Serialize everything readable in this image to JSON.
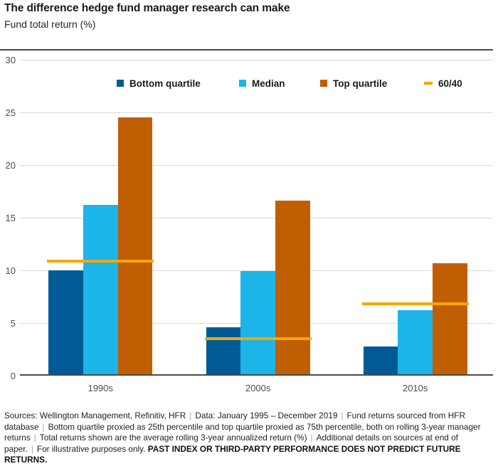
{
  "header": {
    "title": "The difference hedge fund manager research can make",
    "subtitle": "Fund total return (%)"
  },
  "chart_data": {
    "type": "bar",
    "title": "The difference hedge fund manager research can make",
    "ylabel": "Fund total return (%)",
    "categories": [
      "1990s",
      "2000s",
      "2010s"
    ],
    "series": [
      {
        "name": "Bottom quartile",
        "color": "#005a96",
        "values": [
          10.0,
          4.6,
          2.8
        ]
      },
      {
        "name": "Median",
        "color": "#1db4e8",
        "values": [
          16.2,
          9.9,
          6.2
        ]
      },
      {
        "name": "Top quartile",
        "color": "#c05e03",
        "values": [
          24.5,
          16.6,
          10.7
        ]
      }
    ],
    "benchmark": {
      "name": "60/40",
      "color": "#f5a800",
      "values": [
        10.9,
        3.5,
        6.8
      ]
    },
    "ylim": [
      0,
      30
    ],
    "yticks": [
      0,
      5,
      10,
      15,
      20,
      25,
      30
    ],
    "grid": true,
    "legend_position": "top"
  },
  "legend": {
    "items": [
      {
        "label": "Bottom quartile"
      },
      {
        "label": "Median"
      },
      {
        "label": "Top quartile"
      },
      {
        "label": "60/40"
      }
    ]
  },
  "footnote": {
    "separator": "|",
    "segments": [
      "Sources: Wellington Management, Refinitiv, HFR",
      "Data: January 1995 – December 2019",
      "Fund returns sourced from HFR database",
      "Bottom quartile proxied as 25th percentile and top quartile proxied as 75th percentile, both on rolling 3-year manager returns",
      "Total returns shown are the average rolling 3-year annualized return (%)",
      "Additional details on sources at end of paper.",
      "For illustrative purposes only."
    ],
    "bold_text": "PAST INDEX OR THIRD-PARTY PERFORMANCE DOES NOT PREDICT FUTURE RETURNS."
  },
  "colors": {
    "gridline": "#d9d9d9",
    "axis": "#4a4a4a",
    "top_rule": "#474747",
    "tick_text": "#4d4d4d"
  }
}
